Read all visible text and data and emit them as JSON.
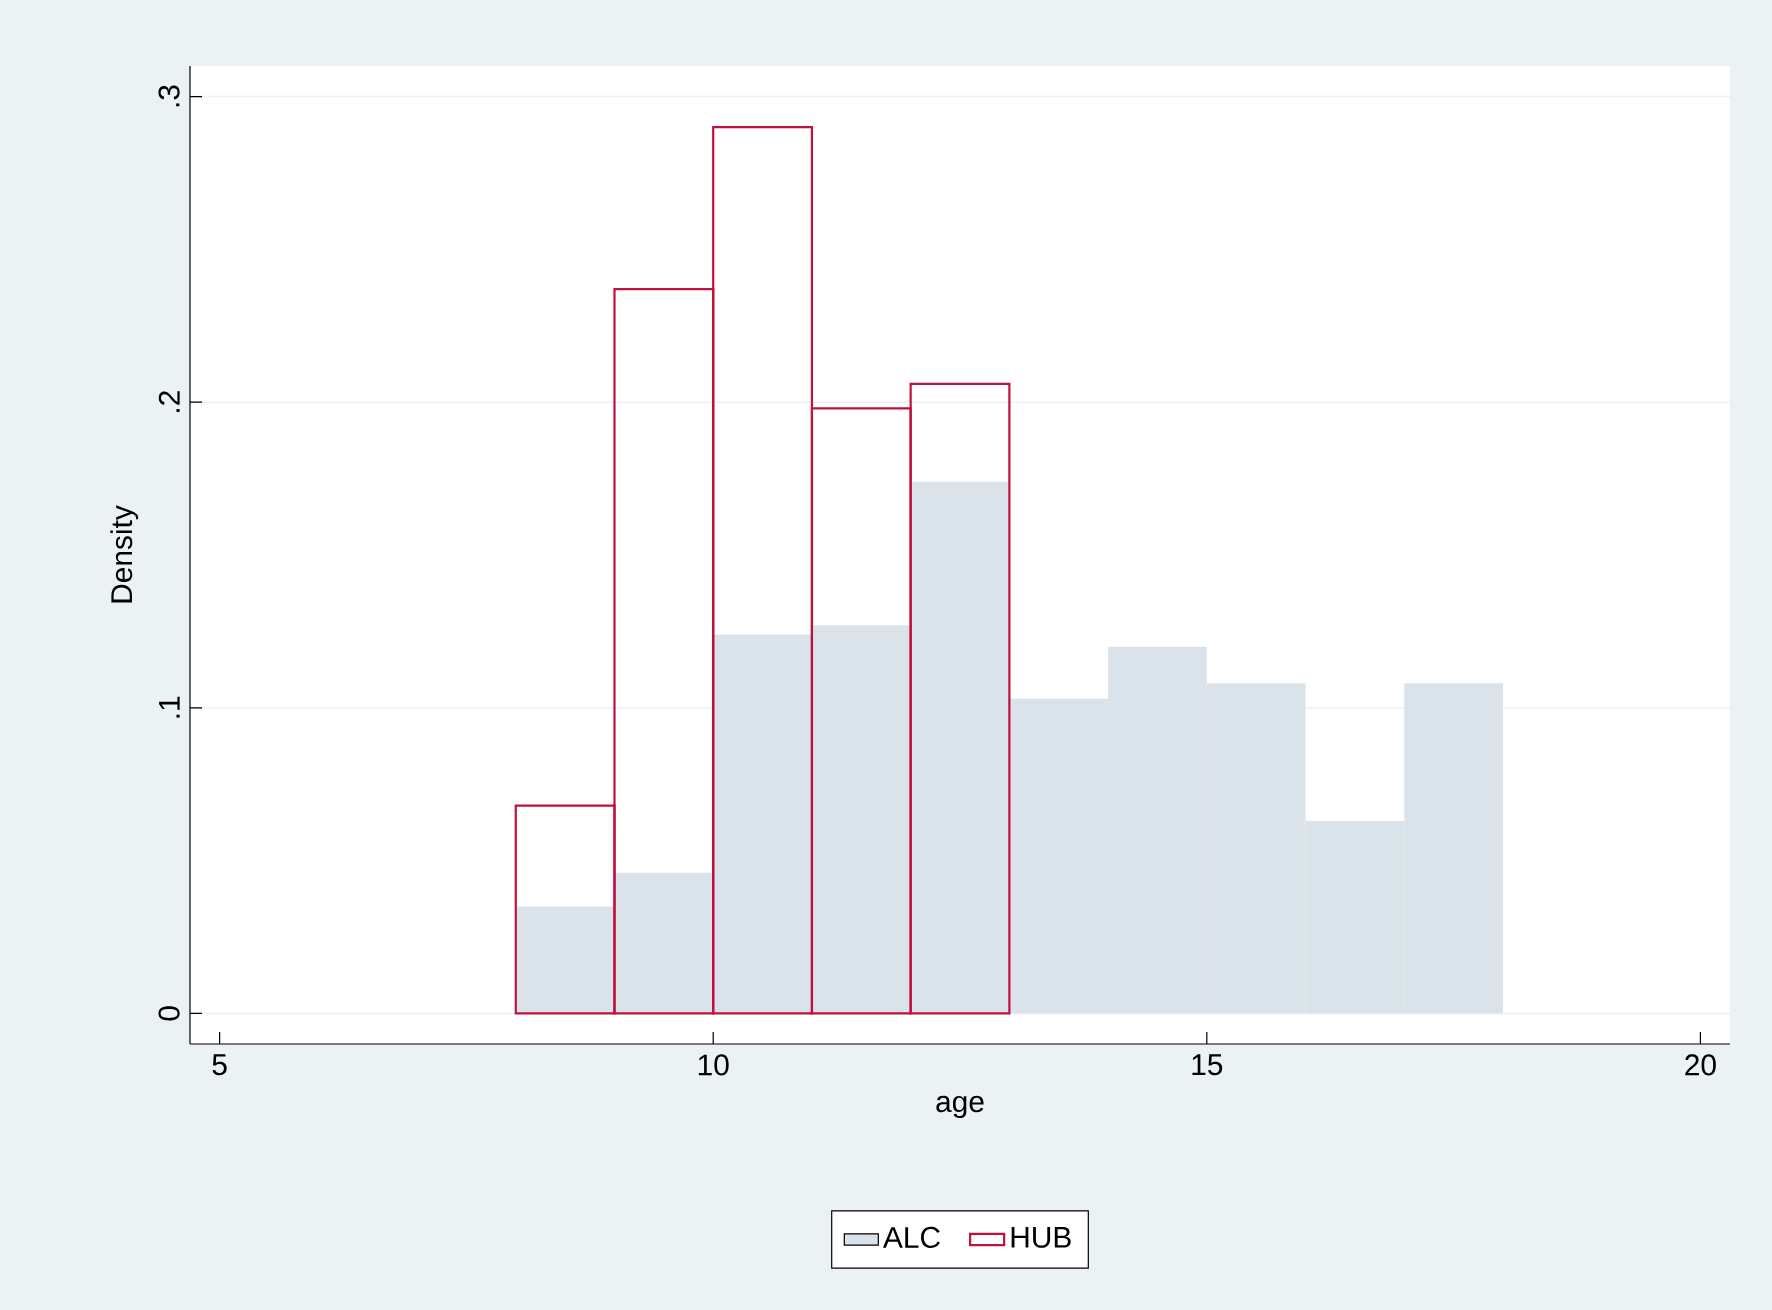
{
  "chart_data": {
    "type": "histogram",
    "xlabel": "age",
    "ylabel": "Density",
    "xlim": [
      4.7,
      20.3
    ],
    "ylim": [
      -0.01,
      0.31
    ],
    "xticks": [
      5,
      10,
      15,
      20
    ],
    "yticks": [
      {
        "value": 0,
        "label": "0"
      },
      {
        "value": 0.1,
        "label": ".1"
      },
      {
        "value": 0.2,
        "label": ".2"
      },
      {
        "value": 0.3,
        "label": ".3"
      }
    ],
    "grid": "y",
    "legend": "bottom",
    "bins": [
      8,
      9,
      10,
      11,
      12,
      13,
      14,
      15,
      16,
      17,
      18
    ],
    "series": [
      {
        "name": "ALC",
        "color": "#d9e3e9",
        "values": [
          0.035,
          0.046,
          0.124,
          0.127,
          0.174,
          0.103,
          0.12,
          0.108,
          0.063,
          0.108
        ]
      },
      {
        "name": "HUB",
        "color": "#c0103c",
        "line_style": "solid",
        "values": [
          0.068,
          0.237,
          0.29,
          0.198,
          0.206,
          null,
          null,
          null,
          null,
          null
        ]
      }
    ]
  }
}
